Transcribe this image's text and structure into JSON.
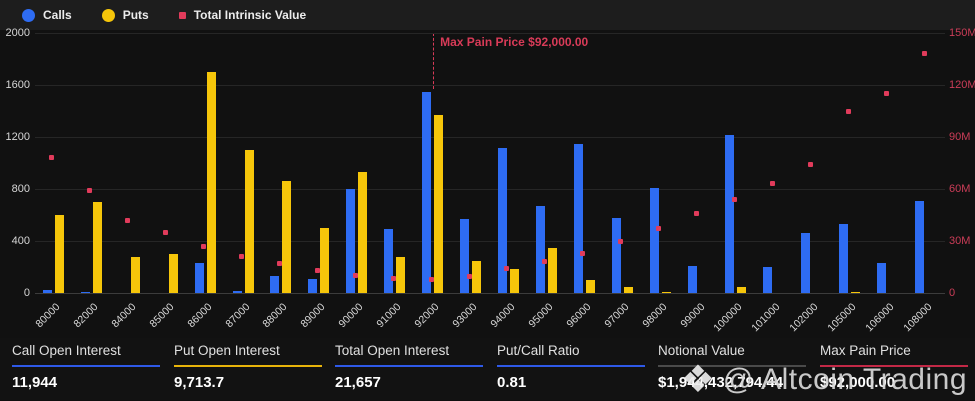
{
  "legend": {
    "items": [
      {
        "label": "Calls",
        "marker": "circle",
        "color": "#2E6CF3"
      },
      {
        "label": "Puts",
        "marker": "circle",
        "color": "#F6C60A"
      },
      {
        "label": "Total Intrinsic Value",
        "marker": "square",
        "color": "#E13B5B"
      }
    ]
  },
  "chart_data": {
    "type": "bar",
    "categories": [
      "80000",
      "82000",
      "84000",
      "85000",
      "86000",
      "87000",
      "88000",
      "89000",
      "90000",
      "91000",
      "92000",
      "93000",
      "94000",
      "95000",
      "96000",
      "97000",
      "98000",
      "99000",
      "100000",
      "101000",
      "102000",
      "105000",
      "106000",
      "108000"
    ],
    "series": [
      {
        "name": "Calls",
        "type": "bar",
        "axis": "left",
        "color": "#2E6CF3",
        "values": [
          20,
          5,
          0,
          0,
          230,
          12,
          130,
          110,
          800,
          490,
          1550,
          570,
          1115,
          670,
          1150,
          580,
          805,
          205,
          1215,
          200,
          460,
          530,
          230,
          705
        ]
      },
      {
        "name": "Puts",
        "type": "bar",
        "axis": "left",
        "color": "#F6C60A",
        "values": [
          600,
          700,
          280,
          300,
          1700,
          1100,
          860,
          500,
          930,
          280,
          1370,
          245,
          185,
          350,
          100,
          50,
          10,
          0,
          45,
          0,
          0,
          8,
          0,
          0
        ]
      },
      {
        "name": "Total Intrinsic Value",
        "type": "scatter",
        "axis": "right",
        "color": "#E13B5B",
        "values_millions": [
          78,
          59,
          42,
          35,
          27,
          21,
          17,
          13,
          10,
          8.5,
          8,
          9.5,
          14,
          18,
          23,
          30,
          37,
          46,
          54,
          63,
          74,
          105,
          115,
          138
        ]
      }
    ],
    "left_axis": {
      "ticks": [
        2000,
        1600,
        1200,
        800,
        400,
        0
      ],
      "max": 2000
    },
    "right_axis": {
      "tick_labels": [
        "150M",
        "120M",
        "90M",
        "60M",
        "30M",
        "0"
      ],
      "tick_values_millions": [
        150,
        120,
        90,
        60,
        30,
        0
      ],
      "max_millions": 150
    },
    "max_pain": {
      "label": "Max Pain Price $92,000.00",
      "category": "92000",
      "category_index": 10
    },
    "grid": true,
    "legend_position": "top-left"
  },
  "footer": {
    "stats": [
      {
        "label": "Call Open Interest",
        "value": "11,944",
        "underline_color": "#2E59E8"
      },
      {
        "label": "Put Open Interest",
        "value": "9,713.7",
        "underline_color": "#E8B40A"
      },
      {
        "label": "Total Open Interest",
        "value": "21,657",
        "underline_color": "#2E59E8"
      },
      {
        "label": "Put/Call Ratio",
        "value": "0.81",
        "underline_color": "#2E59E8"
      },
      {
        "label": "Notional Value",
        "value": "$1,944,432,794.44",
        "underline_color": "#4a4a4a"
      },
      {
        "label": "Max Pain Price",
        "value": "$92,000.00",
        "underline_color": "#C22846"
      }
    ]
  },
  "watermark": {
    "logo_glyph": "❖",
    "handle": "@ Altcoin Trading"
  }
}
